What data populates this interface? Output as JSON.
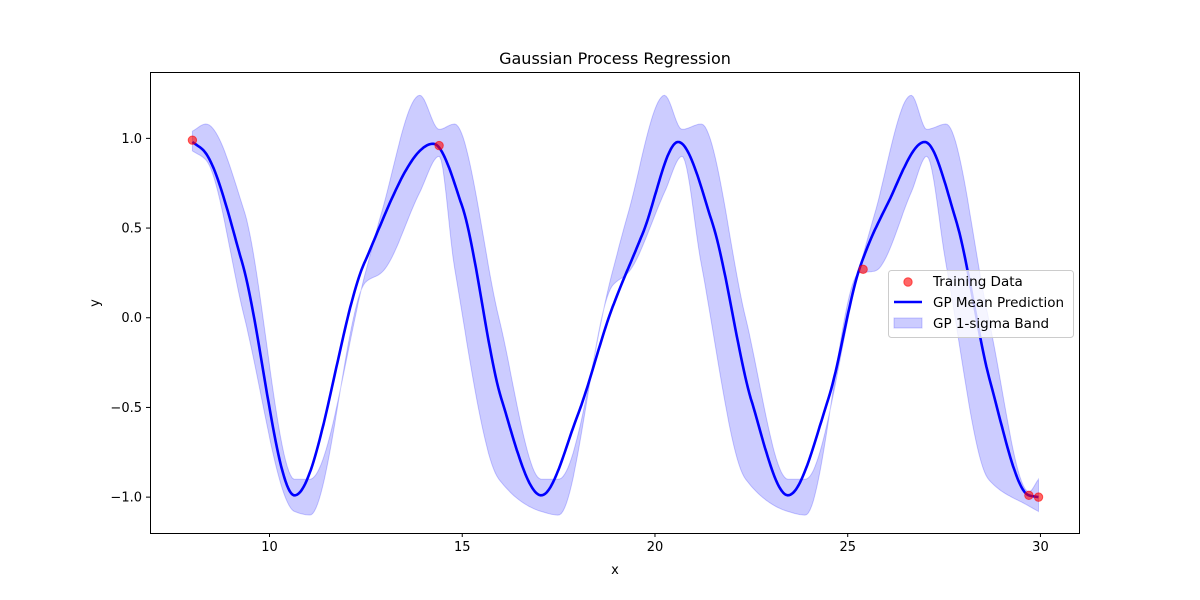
{
  "chart_data": {
    "type": "line",
    "title": "Gaussian Process Regression",
    "xlabel": "x",
    "ylabel": "y",
    "xlim": [
      6.9,
      31.0
    ],
    "ylim": [
      -1.2,
      1.37
    ],
    "xticks": [
      10,
      15,
      20,
      25,
      30
    ],
    "yticks": [
      -1.0,
      -0.5,
      0.0,
      0.5,
      1.0
    ],
    "xtick_labels": [
      "10",
      "15",
      "20",
      "25",
      "30"
    ],
    "ytick_labels": [
      "−1.0",
      "−0.5",
      "0.0",
      "0.5",
      "1.0"
    ],
    "grid": false,
    "legend_position": "center-right",
    "colors": {
      "mean": "#0000ff",
      "band": "#0000ff",
      "points": "#ff0000"
    },
    "series": [
      {
        "name": "Training Data",
        "kind": "scatter",
        "points": [
          {
            "x": 8.0,
            "y": 0.99
          },
          {
            "x": 14.4,
            "y": 0.96
          },
          {
            "x": 25.4,
            "y": 0.27
          },
          {
            "x": 29.7,
            "y": -0.99
          },
          {
            "x": 29.95,
            "y": -1.0
          }
        ]
      },
      {
        "name": "GP Mean Prediction",
        "kind": "line",
        "x": [
          8.0,
          8.3,
          9.3,
          10.65,
          12.45,
          14.25,
          15.0,
          16.0,
          17.05,
          18.0,
          18.85,
          19.7,
          20.6,
          21.5,
          22.5,
          23.45,
          24.5,
          25.3,
          26.0,
          27.0,
          27.8,
          28.7,
          29.7,
          29.95
        ],
        "y": [
          0.98,
          0.93,
          0.3,
          -0.99,
          0.3,
          0.97,
          0.62,
          -0.44,
          -0.99,
          -0.54,
          0.03,
          0.48,
          0.98,
          0.52,
          -0.46,
          -0.99,
          -0.45,
          0.27,
          0.62,
          0.98,
          0.55,
          -0.36,
          -0.99,
          -1.0
        ]
      },
      {
        "name": "GP 1-sigma Band",
        "kind": "band",
        "x": [
          8.0,
          8.35,
          9.35,
          10.65,
          11.05,
          12.5,
          12.9,
          13.9,
          14.4,
          14.8,
          15.95,
          17.05,
          17.5,
          18.9,
          19.3,
          20.25,
          20.7,
          21.2,
          22.35,
          23.45,
          23.9,
          25.3,
          25.7,
          26.65,
          27.05,
          27.55,
          28.65,
          29.7,
          29.95
        ],
        "upper": [
          1.04,
          1.08,
          0.59,
          -0.9,
          -0.9,
          0.26,
          0.58,
          1.24,
          1.05,
          1.08,
          0.0,
          -0.9,
          -0.9,
          0.26,
          0.58,
          1.24,
          1.05,
          1.08,
          0.0,
          -0.9,
          -0.9,
          0.27,
          0.58,
          1.24,
          1.05,
          1.08,
          0.0,
          -0.97,
          -0.9
        ],
        "lower": [
          0.93,
          0.88,
          0.0,
          -1.08,
          -1.1,
          0.2,
          0.25,
          0.7,
          0.9,
          0.28,
          -0.9,
          -1.08,
          -1.1,
          0.18,
          0.25,
          0.7,
          0.9,
          0.3,
          -0.9,
          -1.08,
          -1.1,
          0.25,
          0.26,
          0.7,
          0.9,
          0.3,
          -0.9,
          -1.05,
          -1.08
        ]
      }
    ]
  }
}
